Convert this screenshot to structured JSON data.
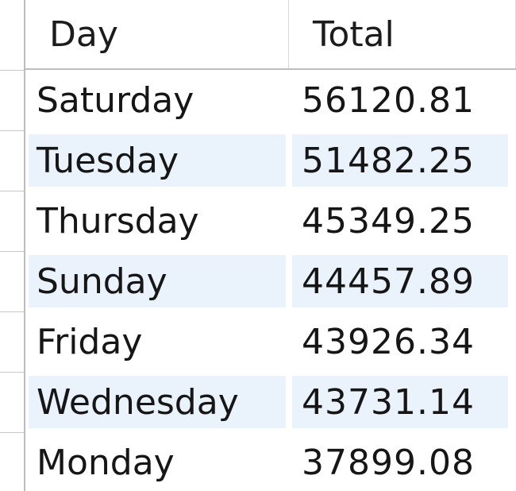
{
  "table": {
    "columns": [
      "Day",
      "Total"
    ],
    "rows": [
      {
        "day": "Saturday",
        "total": "56120.81"
      },
      {
        "day": "Tuesday",
        "total": "51482.25"
      },
      {
        "day": "Thursday",
        "total": "45349.25"
      },
      {
        "day": "Sunday",
        "total": "44457.89"
      },
      {
        "day": "Friday",
        "total": "43926.34"
      },
      {
        "day": "Wednesday",
        "total": "43731.14"
      },
      {
        "day": "Monday",
        "total": "37899.08"
      }
    ]
  },
  "colors": {
    "alt_row_background": "#eaf2fc",
    "grid_line": "#bdbdbd",
    "text": "#161616"
  }
}
